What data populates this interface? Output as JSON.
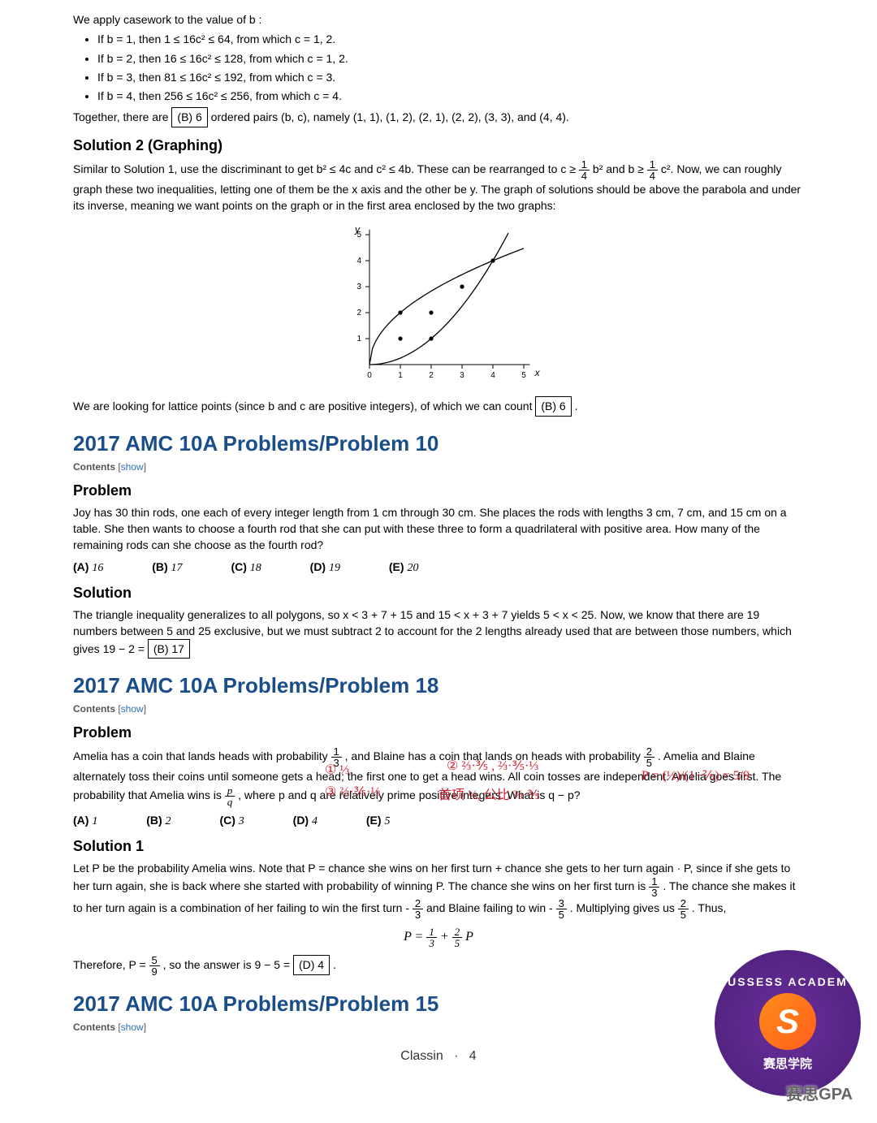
{
  "intro": {
    "casework_lead": "We apply casework to the value of b :",
    "cases": [
      "If b = 1, then 1 ≤ 16c² ≤ 64, from which c = 1, 2.",
      "If b = 2, then 16 ≤ 16c² ≤ 128, from which c = 1, 2.",
      "If b = 3, then 81 ≤ 16c² ≤ 192, from which c = 3.",
      "If b = 4, then 256 ≤ 16c² ≤ 256, from which c = 4."
    ],
    "together_pre": "Together, there are",
    "together_ans": "(B) 6",
    "together_post": "ordered pairs (b, c), namely (1, 1), (1, 2), (2, 1), (2, 2), (3, 3), and (4, 4)."
  },
  "sol2": {
    "title": "Solution 2 (Graphing)",
    "para_pre": "Similar to Solution 1, use the discriminant to get b² ≤ 4c and c² ≤ 4b. These can be rearranged to c ≥ ",
    "frac1": {
      "n": "1",
      "d": "4"
    },
    "mid1": "b² and b ≥ ",
    "frac2": {
      "n": "1",
      "d": "4"
    },
    "para_post": "c². Now, we can roughly graph these two inequalities, letting one of them be the x axis and the other be y. The graph of solutions should be above the parabola and under its inverse, meaning we want points on the graph or in the first area enclosed by the two graphs:",
    "graph": {
      "xlabel": "x",
      "ylabel": "y",
      "xlim": [
        0,
        5
      ],
      "ylim": [
        0,
        5
      ],
      "xticks": [
        0,
        1,
        2,
        3,
        4,
        5
      ],
      "yticks": [
        0,
        1,
        2,
        3,
        4,
        5
      ],
      "curve1_label": "parabola_up",
      "curve2_label": "sqrt_like",
      "points": [
        [
          1,
          1
        ],
        [
          1,
          2
        ],
        [
          2,
          1
        ],
        [
          2,
          2
        ],
        [
          3,
          3
        ],
        [
          4,
          4
        ]
      ],
      "axis_color": "#000",
      "curve_color": "#000",
      "point_color": "#000",
      "background": "#ffffff"
    },
    "after_pre": "We are looking for lattice points (since b and c are positive integers), of which we can count",
    "after_ans": "(B) 6",
    "after_post": "."
  },
  "p10": {
    "title": "2017 AMC 10A Problems/Problem 10",
    "contents_label": "Contents",
    "show": "show",
    "problem_h": "Problem",
    "problem_text": "Joy has 30 thin rods, one each of every integer length from 1 cm through 30 cm. She places the rods with lengths 3 cm, 7 cm, and 15 cm on a table. She then wants to choose a fourth rod that she can put with these three to form a quadrilateral with positive area. How many of the remaining rods can she choose as the fourth rod?",
    "choices": {
      "A": "16",
      "B": "17",
      "C": "18",
      "D": "19",
      "E": "20"
    },
    "solution_h": "Solution",
    "solution_pre": "The triangle inequality generalizes to all polygons, so x < 3 + 7 + 15 and 15 < x + 3 + 7 yields 5 < x < 25. Now, we know that there are 19 numbers between 5 and 25 exclusive, but we must subtract 2 to account for the 2 lengths already used that are between those numbers, which gives 19 − 2 =",
    "solution_ans": "(B) 17"
  },
  "p18": {
    "title": "2017 AMC 10A Problems/Problem 18",
    "contents_label": "Contents",
    "show": "show",
    "problem_h": "Problem",
    "pt1": "Amelia has a coin that lands heads with probability ",
    "f1": {
      "n": "1",
      "d": "3"
    },
    "pt2": ", and Blaine has a coin that lands on heads with probability ",
    "f2": {
      "n": "2",
      "d": "5"
    },
    "pt3": ". Amelia and Blaine alternately toss their coins until someone gets a head; the first one to get a head wins. All coin tosses are independent. Amelia goes first. The probability that Amelia wins is ",
    "f3": {
      "n": "p",
      "d": "q"
    },
    "pt4": ", where p and q are relatively prime positive integers. What is q − p?",
    "choices": {
      "A": "1",
      "B": "2",
      "C": "3",
      "D": "4",
      "E": "5"
    },
    "sol1_h": "Solution 1",
    "s1_p1": "Let P be the probability Amelia wins. Note that P = chance she wins on her first turn + chance she gets to her turn again · P, since if she gets to her turn again, she is back where she started with probability of winning P. The chance she wins on her first turn is ",
    "sf1": {
      "n": "1",
      "d": "3"
    },
    "s1_p2": ". The chance she makes it to her turn again is a combination of her failing to win the first turn - ",
    "sf2": {
      "n": "2",
      "d": "3"
    },
    "s1_p3": " and Blaine failing to win - ",
    "sf3": {
      "n": "3",
      "d": "5"
    },
    "s1_p4": ". Multiplying gives us ",
    "sf4": {
      "n": "2",
      "d": "5"
    },
    "s1_p5": ". Thus,",
    "equation": "P = 1/3 + (2/5) P",
    "therefore_pre": "Therefore, P = ",
    "therefore_frac": {
      "n": "5",
      "d": "9"
    },
    "therefore_mid": ", so the answer is 9 − 5 =",
    "therefore_ans": "(D) 4",
    "therefore_post": ".",
    "handwriting": {
      "h1": "① ⅓.",
      "h2": "② ⅔·⅗ , ⅔·⅗·⅓",
      "h3": "③ ⅔·⅗·⅓",
      "h4": "首项 ⅓, 公比 ⅔·⅗",
      "h5": "P = (⅓)/(1−⅖) = 5/9"
    }
  },
  "p15": {
    "title": "2017 AMC 10A Problems/Problem 15",
    "contents_label": "Contents",
    "show": "show"
  },
  "footer": {
    "app": "Classin",
    "sep": "·",
    "page": "4"
  },
  "badge": {
    "top": "SUSSESS ACADEMY",
    "glyph": "S",
    "cn": "赛思学院"
  },
  "watermark": "赛思GPA"
}
